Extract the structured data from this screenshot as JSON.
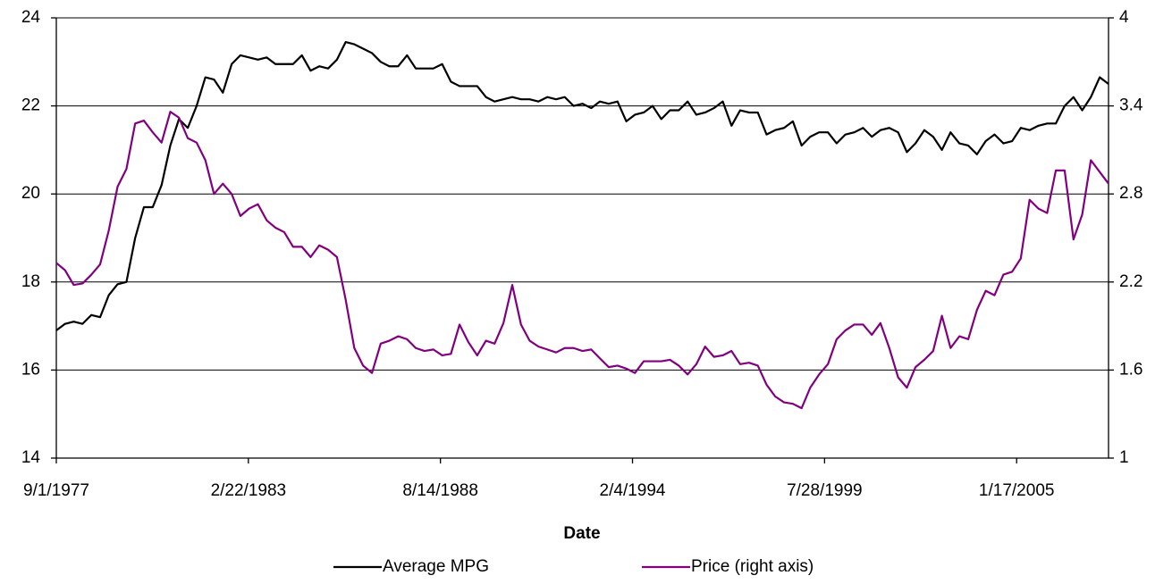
{
  "chart_data": {
    "type": "line",
    "x": [
      "9/1/1977",
      "12/1/1977",
      "3/1/1978",
      "6/1/1978",
      "9/1/1978",
      "12/1/1978",
      "3/1/1979",
      "6/1/1979",
      "9/1/1979",
      "12/1/1979",
      "3/1/1980",
      "6/1/1980",
      "9/1/1980",
      "12/1/1980",
      "3/1/1981",
      "6/1/1981",
      "9/1/1981",
      "12/1/1981",
      "3/1/1982",
      "6/1/1982",
      "9/1/1982",
      "12/1/1982",
      "3/1/1983",
      "6/1/1983",
      "9/1/1983",
      "12/1/1983",
      "3/1/1984",
      "6/1/1984",
      "9/1/1984",
      "12/1/1984",
      "3/1/1985",
      "6/1/1985",
      "9/1/1985",
      "12/1/1985",
      "3/1/1986",
      "6/1/1986",
      "9/1/1986",
      "12/1/1986",
      "3/1/1987",
      "6/1/1987",
      "9/1/1987",
      "12/1/1987",
      "3/1/1988",
      "6/1/1988",
      "9/1/1988",
      "12/1/1988",
      "3/1/1989",
      "6/1/1989",
      "9/1/1989",
      "12/1/1989",
      "3/1/1990",
      "6/1/1990",
      "9/1/1990",
      "12/1/1990",
      "3/1/1991",
      "6/1/1991",
      "9/1/1991",
      "12/1/1991",
      "3/1/1992",
      "6/1/1992",
      "9/1/1992",
      "12/1/1992",
      "3/1/1993",
      "6/1/1993",
      "9/1/1993",
      "12/1/1993",
      "3/1/1994",
      "6/1/1994",
      "9/1/1994",
      "12/1/1994",
      "3/1/1995",
      "6/1/1995",
      "9/1/1995",
      "12/1/1995",
      "3/1/1996",
      "6/1/1996",
      "9/1/1996",
      "12/1/1996",
      "3/1/1997",
      "6/1/1997",
      "9/1/1997",
      "12/1/1997",
      "3/1/1998",
      "6/1/1998",
      "9/1/1998",
      "12/1/1998",
      "3/1/1999",
      "6/1/1999",
      "9/1/1999",
      "12/1/1999",
      "3/1/2000",
      "6/1/2000",
      "9/1/2000",
      "12/1/2000",
      "3/1/2001",
      "6/1/2001",
      "9/1/2001",
      "12/1/2001",
      "3/1/2002",
      "6/1/2002",
      "9/1/2002",
      "12/1/2002",
      "3/1/2003",
      "6/1/2003",
      "9/1/2003",
      "12/1/2003",
      "3/1/2004",
      "6/1/2004",
      "9/1/2004",
      "12/1/2004",
      "3/1/2005",
      "6/1/2005",
      "9/1/2005",
      "12/1/2005",
      "3/1/2006",
      "6/1/2006",
      "9/1/2006",
      "12/1/2006",
      "3/1/2007",
      "6/1/2007",
      "9/1/2007"
    ],
    "series": [
      {
        "name": "Average MPG",
        "color": "#000000",
        "values": [
          16.9,
          17.05,
          17.1,
          17.05,
          17.25,
          17.2,
          17.7,
          17.95,
          18.0,
          19.0,
          19.7,
          19.7,
          20.2,
          21.1,
          21.7,
          21.5,
          22.0,
          22.65,
          22.6,
          22.3,
          22.95,
          23.15,
          23.1,
          23.05,
          23.1,
          22.95,
          22.95,
          22.95,
          23.15,
          22.8,
          22.9,
          22.85,
          23.05,
          23.45,
          23.4,
          23.3,
          23.2,
          23.0,
          22.9,
          22.9,
          23.15,
          22.85,
          22.85,
          22.85,
          22.95,
          22.55,
          22.45,
          22.45,
          22.45,
          22.2,
          22.1,
          22.15,
          22.2,
          22.15,
          22.15,
          22.1,
          22.2,
          22.15,
          22.2,
          22.0,
          22.05,
          21.95,
          22.1,
          22.05,
          22.1,
          21.65,
          21.8,
          21.85,
          22.0,
          21.7,
          21.9,
          21.9,
          22.1,
          21.8,
          21.85,
          21.95,
          22.1,
          21.55,
          21.9,
          21.85,
          21.85,
          21.35,
          21.45,
          21.5,
          21.65,
          21.1,
          21.3,
          21.4,
          21.4,
          21.15,
          21.35,
          21.4,
          21.5,
          21.3,
          21.45,
          21.5,
          21.4,
          20.95,
          21.15,
          21.45,
          21.3,
          21.0,
          21.4,
          21.15,
          21.1,
          20.9,
          21.2,
          21.35,
          21.15,
          21.2,
          21.5,
          21.45,
          21.55,
          21.6,
          21.6,
          22.0,
          22.2,
          21.9,
          22.2,
          22.65,
          22.5
        ]
      },
      {
        "name": "Price (right axis)",
        "color": "#800080",
        "axis": "y2",
        "values": [
          2.33,
          2.28,
          2.18,
          2.19,
          2.25,
          2.32,
          2.55,
          2.85,
          2.97,
          3.28,
          3.3,
          3.22,
          3.15,
          3.36,
          3.32,
          3.18,
          3.15,
          3.03,
          2.8,
          2.87,
          2.8,
          2.65,
          2.7,
          2.73,
          2.62,
          2.57,
          2.54,
          2.44,
          2.44,
          2.37,
          2.45,
          2.42,
          2.37,
          2.08,
          1.75,
          1.63,
          1.58,
          1.78,
          1.8,
          1.83,
          1.81,
          1.75,
          1.73,
          1.74,
          1.7,
          1.71,
          1.91,
          1.79,
          1.7,
          1.8,
          1.78,
          1.92,
          2.18,
          1.91,
          1.8,
          1.76,
          1.74,
          1.72,
          1.75,
          1.75,
          1.73,
          1.74,
          1.68,
          1.62,
          1.63,
          1.61,
          1.58,
          1.66,
          1.66,
          1.66,
          1.67,
          1.63,
          1.57,
          1.64,
          1.76,
          1.69,
          1.7,
          1.73,
          1.64,
          1.65,
          1.63,
          1.5,
          1.42,
          1.38,
          1.37,
          1.34,
          1.48,
          1.57,
          1.64,
          1.81,
          1.87,
          1.91,
          1.91,
          1.84,
          1.92,
          1.75,
          1.55,
          1.48,
          1.62,
          1.67,
          1.73,
          1.97,
          1.75,
          1.83,
          1.81,
          2.01,
          2.14,
          2.11,
          2.25,
          2.27,
          2.36,
          2.76,
          2.7,
          2.67,
          2.96,
          2.96,
          2.49,
          2.66,
          3.03,
          2.95,
          2.87
        ]
      }
    ],
    "xlabel": "Date",
    "xlim": [
      "9/1/1977",
      "9/1/2007"
    ],
    "xticks": [
      "9/1/1977",
      "2/22/1983",
      "8/14/1988",
      "2/4/1994",
      "7/28/1999",
      "1/17/2005"
    ],
    "ylim": [
      14,
      24
    ],
    "yticks": [
      14,
      16,
      18,
      20,
      22,
      24
    ],
    "y2lim": [
      1,
      4
    ],
    "y2ticks": [
      1,
      1.6,
      2.2,
      2.8,
      3.4,
      4
    ],
    "grid": true,
    "legend": "bottom"
  }
}
